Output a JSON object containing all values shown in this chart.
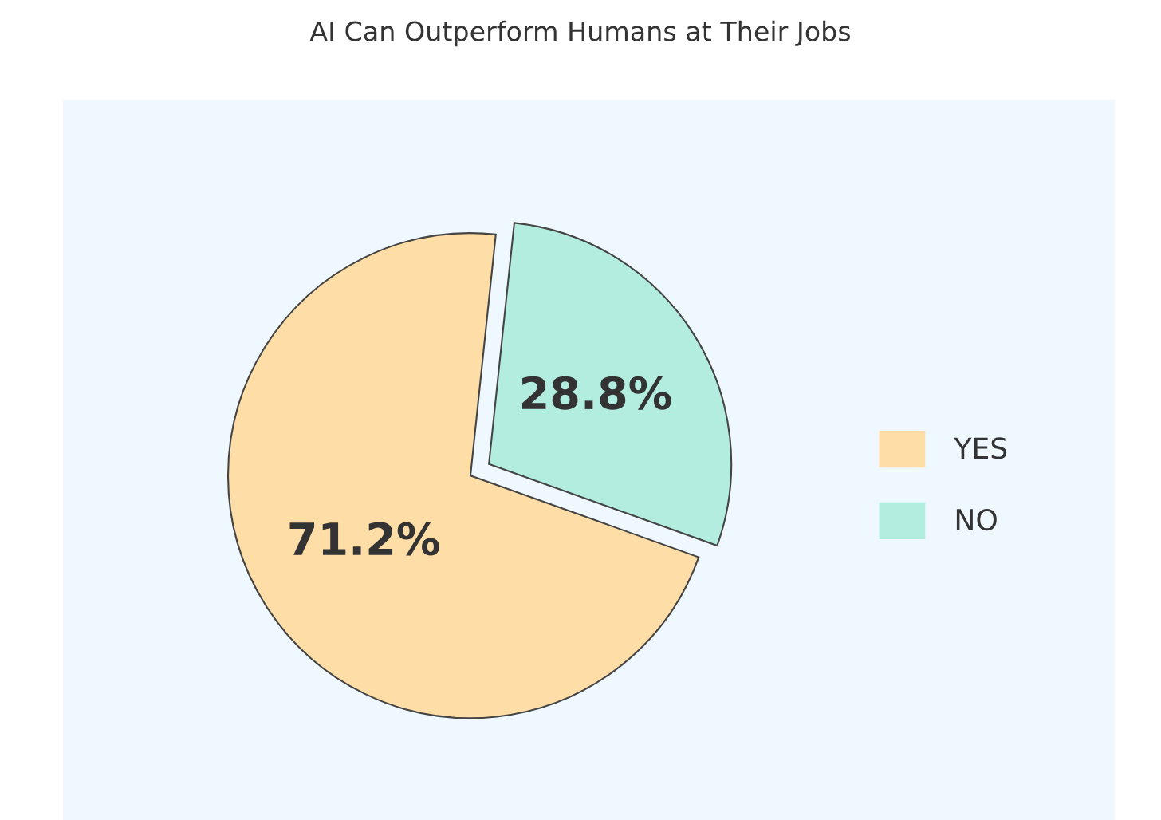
{
  "chart_data": {
    "type": "pie",
    "title": "AI Can Outperform Humans at Their Jobs",
    "categories": [
      "YES",
      "NO"
    ],
    "values": [
      71.2,
      28.8
    ],
    "colors": [
      "#fedda6",
      "#b3ede0"
    ],
    "value_labels": [
      "71.2%",
      "28.8%"
    ],
    "legend": "right"
  }
}
